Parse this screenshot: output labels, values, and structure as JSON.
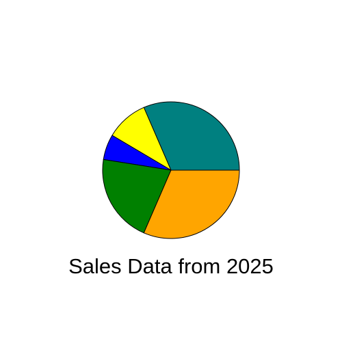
{
  "chart_data": {
    "type": "pie",
    "title": "Sales Data from 2025",
    "start_angle_deg": 0,
    "direction": "counterclockwise",
    "slices": [
      {
        "value": 31.5,
        "color": "#008080"
      },
      {
        "value": 10.0,
        "color": "#FFFF00"
      },
      {
        "value": 6.0,
        "color": "#0000FF"
      },
      {
        "value": 21.0,
        "color": "#008000"
      },
      {
        "value": 31.5,
        "color": "#FFA500"
      }
    ]
  }
}
